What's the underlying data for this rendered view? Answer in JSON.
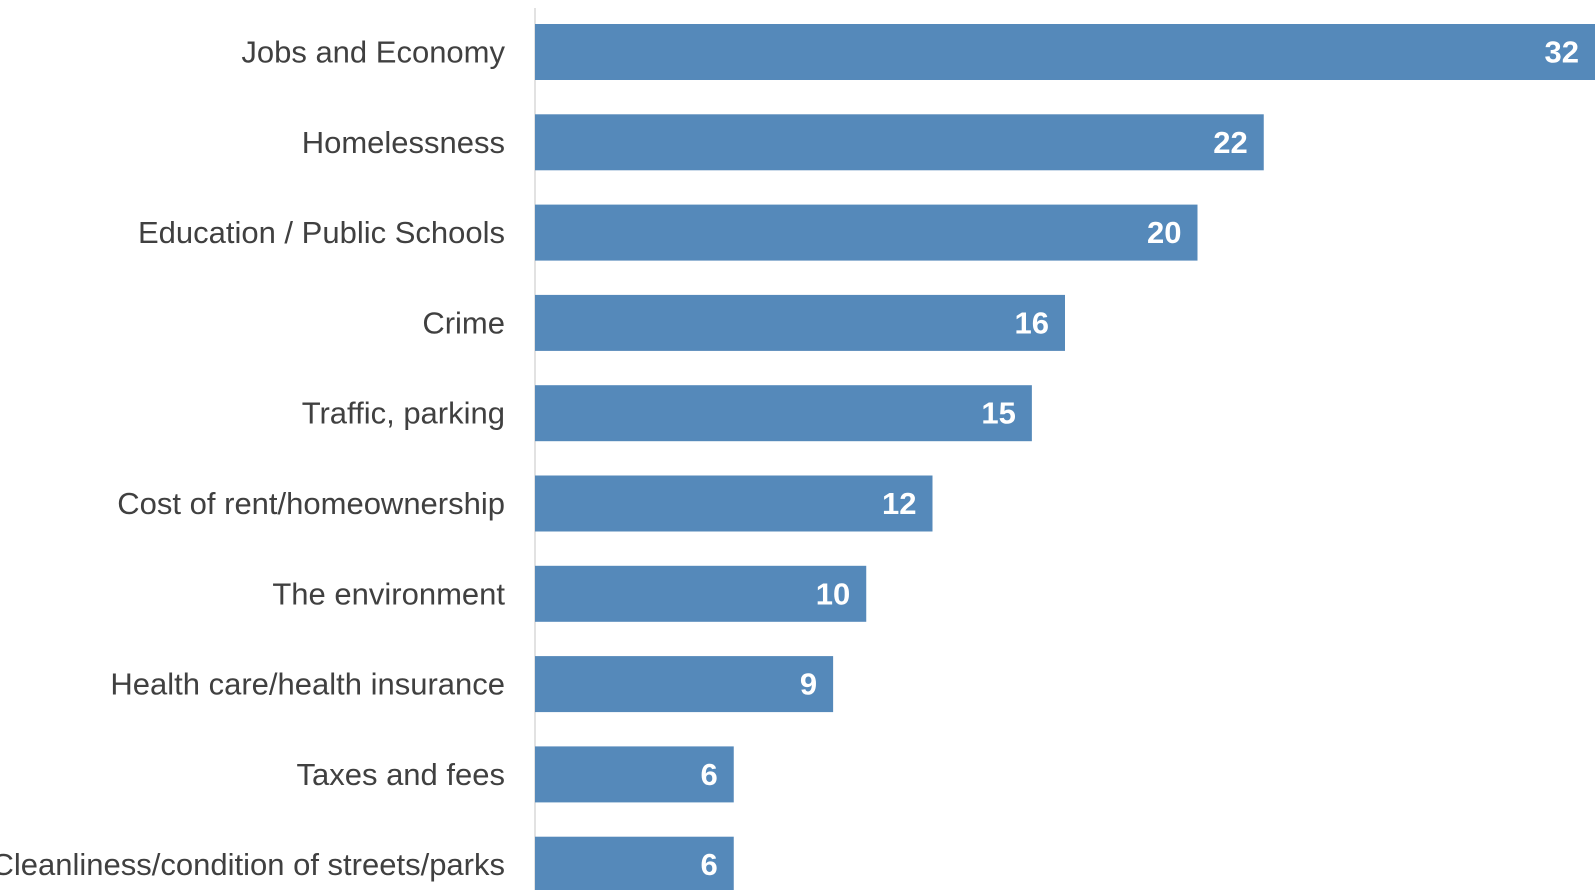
{
  "chart_data": {
    "type": "bar",
    "orientation": "horizontal",
    "categories": [
      "Jobs and Economy",
      "Homelessness",
      "Education / Public Schools",
      "Crime",
      "Traffic, parking",
      "Cost of rent/homeownership",
      "The environment",
      "Health care/health insurance",
      "Taxes and fees",
      "Cleanliness/condition of streets/parks"
    ],
    "values": [
      32,
      22,
      20,
      16,
      15,
      12,
      10,
      9,
      6,
      6
    ],
    "value_labels": [
      "32",
      "22",
      "20",
      "16",
      "15",
      "12",
      "10",
      "9",
      "6",
      "6"
    ],
    "title": "",
    "xlabel": "",
    "ylabel": "",
    "xlim": [
      0,
      32
    ],
    "grid": false,
    "legend": "none",
    "bar_color": "#5589BA",
    "label_color": "#404040",
    "value_label_color": "#FFFFFF",
    "axis_color": "#D9D9D9"
  }
}
